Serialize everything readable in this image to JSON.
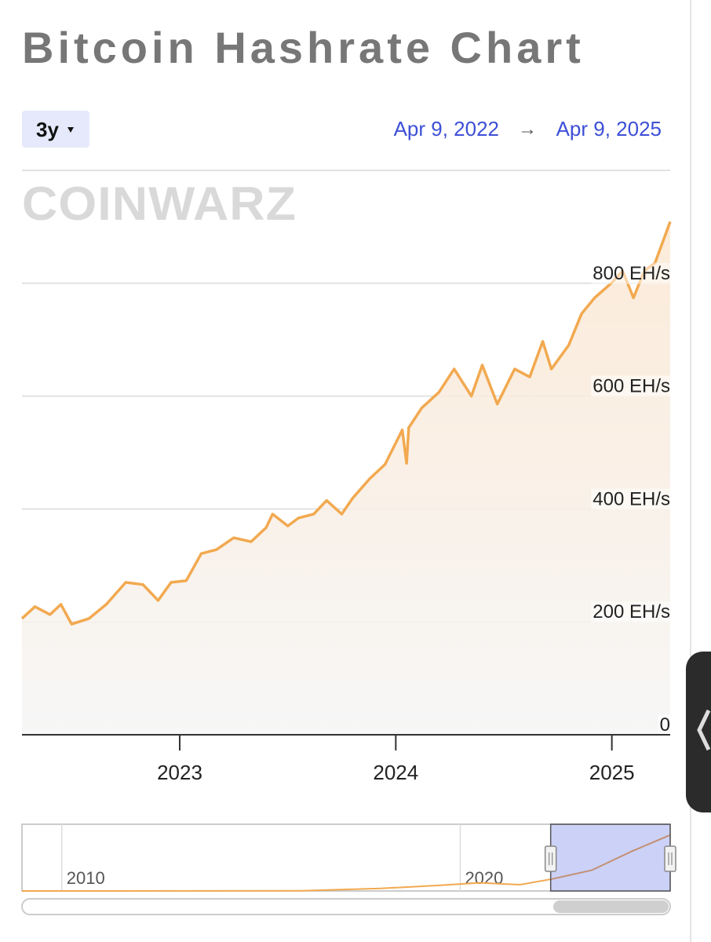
{
  "title": "Bitcoin Hashrate Chart",
  "range_button": "3y",
  "date_from": "Apr 9, 2022",
  "date_arrow": "→",
  "date_to": "Apr 9, 2025",
  "watermark": "COINWARZ",
  "chart_data": [
    {
      "type": "line",
      "x": [
        2022.27,
        2022.33,
        2022.4,
        2022.45,
        2022.5,
        2022.58,
        2022.66,
        2022.75,
        2022.83,
        2022.9,
        2022.96,
        2023.03,
        2023.1,
        2023.17,
        2023.25,
        2023.33,
        2023.4,
        2023.43,
        2023.5,
        2023.55,
        2023.62,
        2023.68,
        2023.75,
        2023.8,
        2023.88,
        2023.95,
        2024.03,
        2024.05,
        2024.06,
        2024.12,
        2024.2,
        2024.27,
        2024.35,
        2024.4,
        2024.47,
        2024.55,
        2024.62,
        2024.68,
        2024.72,
        2024.8,
        2024.86,
        2024.92,
        2025.0,
        2025.05,
        2025.1,
        2025.15,
        2025.2,
        2025.27
      ],
      "series": [
        {
          "color": "#f2a950",
          "values": [
            206,
            227,
            213,
            231,
            196,
            206,
            231,
            270,
            266,
            238,
            270,
            273,
            321,
            328,
            349,
            342,
            367,
            391,
            370,
            384,
            391,
            415,
            391,
            419,
            454,
            479,
            540,
            481,
            544,
            579,
            607,
            648,
            600,
            655,
            586,
            648,
            634,
            697,
            648,
            690,
            746,
            774,
            801,
            822,
            774,
            822,
            836,
            909
          ]
        }
      ],
      "xlim": [
        2022.27,
        2025.27
      ],
      "xticks": [
        2023,
        2024,
        2025
      ],
      "ylim": [
        0,
        1000
      ],
      "yticks": [
        0,
        {
          "value": 200,
          "label": "200 EH/s"
        },
        {
          "value": 400,
          "label": "400 EH/s"
        },
        {
          "value": 600,
          "label": "600 EH/s"
        },
        {
          "value": 800,
          "label": "800 EH/s"
        }
      ],
      "grid": true
    },
    {
      "type": "navigator",
      "x": [
        2009,
        2016,
        2018,
        2019.5,
        2020.5,
        2021.5,
        2022.3,
        2023.3,
        2024.3,
        2025.27
      ],
      "series": [
        {
          "color": "#f2a950",
          "values": [
            0,
            2,
            40,
            90,
            130,
            100,
            190,
            330,
            630,
            891
          ]
        }
      ],
      "xlim": [
        2009,
        2025.27
      ],
      "xticks": [
        2010,
        2020
      ],
      "ylim": [
        0,
        1000
      ]
    }
  ]
}
